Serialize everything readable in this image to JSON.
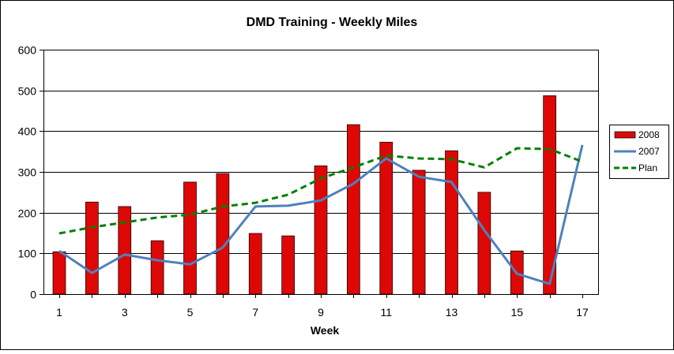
{
  "chart_data": {
    "type": "bar+line",
    "title": "DMD Training - Weekly Miles",
    "xlabel": "Week",
    "ylabel": "",
    "ylim": [
      0,
      600
    ],
    "yticks": [
      0,
      100,
      200,
      300,
      400,
      500,
      600
    ],
    "x": [
      1,
      2,
      3,
      4,
      5,
      6,
      7,
      8,
      9,
      10,
      11,
      12,
      13,
      14,
      15,
      16,
      17
    ],
    "xtick_labels": [
      "1",
      "3",
      "5",
      "7",
      "9",
      "11",
      "13",
      "15",
      "17"
    ],
    "grid": "horizontal",
    "legend_position": "right",
    "series": [
      {
        "name": "2008",
        "type": "bar",
        "color": "#dd0806",
        "values": [
          104,
          226,
          215,
          131,
          275,
          296,
          149,
          143,
          315,
          416,
          373,
          304,
          352,
          250,
          106,
          487,
          null
        ]
      },
      {
        "name": "2007",
        "type": "line",
        "color": "#4f81bd",
        "values": [
          106,
          52,
          97,
          83,
          73,
          114,
          215,
          217,
          230,
          271,
          333,
          288,
          275,
          157,
          50,
          25,
          366
        ]
      },
      {
        "name": "Plan",
        "type": "line-dashed",
        "color": "#008000",
        "values": [
          149,
          164,
          176,
          188,
          195,
          215,
          224,
          244,
          284,
          311,
          340,
          333,
          331,
          311,
          358,
          356,
          325
        ]
      }
    ]
  }
}
